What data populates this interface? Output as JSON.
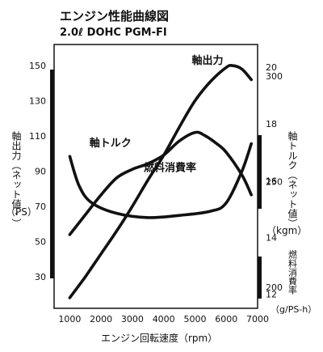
{
  "chart_data": {
    "type": "line",
    "title": "エンジン性能曲線図",
    "subtitle": "2.0ℓ DOHC PGM-FI",
    "xlabel": "エンジン回転速度（rpm）",
    "x_ticks": [
      "1000",
      "2000",
      "3000",
      "4000",
      "5000",
      "6000",
      "7000"
    ],
    "xlim": [
      500,
      7000
    ],
    "left_axis": {
      "label": "軸出力（ネット値・）",
      "unit": "（PS）",
      "ticks": [
        "30",
        "50",
        "70",
        "90",
        "110",
        "130",
        "150"
      ],
      "ylim": [
        12,
        162
      ]
    },
    "right_axis_torque": {
      "label": "軸トルク（ネット値）",
      "unit": "（kgm）",
      "ticks": [
        "20",
        "18",
        "16",
        "14",
        "12"
      ],
      "range": [
        11.5,
        20.8
      ]
    },
    "right_axis_fuel": {
      "label": "燃料消費率",
      "unit": "（g/PS-h）",
      "ticks": [
        "300",
        "250",
        "200"
      ],
      "range": [
        190,
        315
      ]
    },
    "series": [
      {
        "name": "軸出力",
        "axis": "power",
        "x": [
          1000,
          1500,
          2000,
          2500,
          3000,
          3500,
          4000,
          4500,
          5000,
          5500,
          6000,
          6200,
          6500,
          6800
        ],
        "values": [
          18,
          30,
          43,
          56,
          70,
          85,
          99,
          115,
          130,
          141,
          149,
          150,
          148,
          142
        ]
      },
      {
        "name": "軸トルク",
        "axis": "torque",
        "x": [
          1000,
          1500,
          2000,
          2500,
          3000,
          3500,
          4000,
          4500,
          5000,
          5300,
          5700,
          6000,
          6500,
          6800
        ],
        "values": [
          14.1,
          14.8,
          15.5,
          16.1,
          16.4,
          16.6,
          16.9,
          17.4,
          17.7,
          17.6,
          17.3,
          17.0,
          16.2,
          15.5
        ]
      },
      {
        "name": "燃料消費率",
        "axis": "fuel",
        "x": [
          1000,
          1300,
          1700,
          2500,
          3500,
          4500,
          5500,
          6000,
          6500,
          6800
        ],
        "values": [
          262,
          248,
          240,
          235,
          233,
          234,
          236,
          240,
          255,
          268
        ]
      }
    ]
  }
}
